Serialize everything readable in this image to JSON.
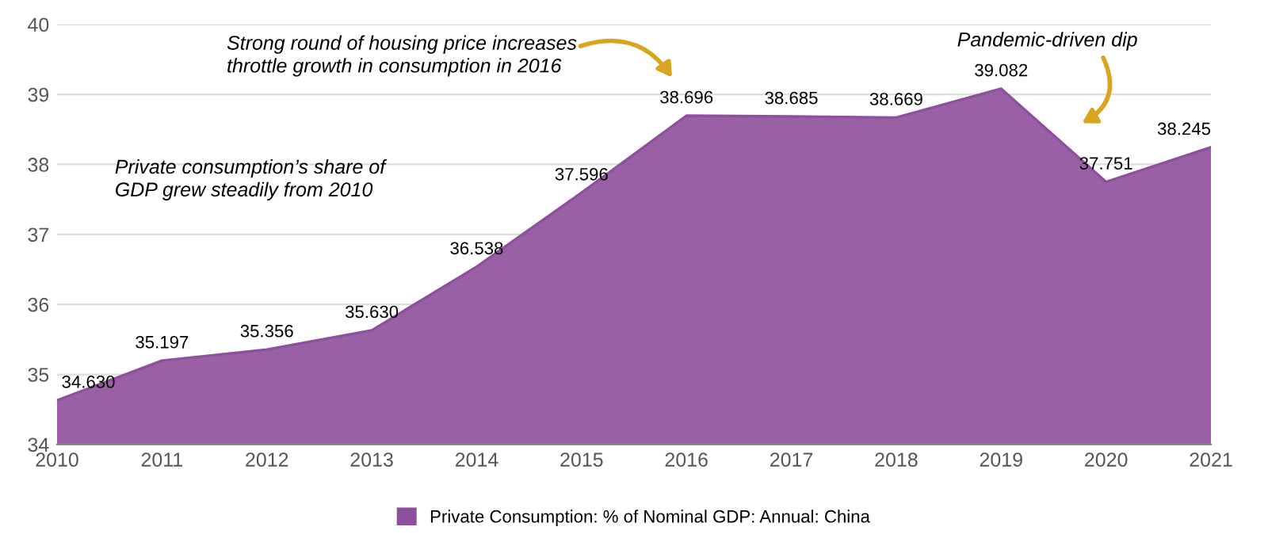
{
  "chart_data": {
    "type": "area",
    "x": [
      2010,
      2011,
      2012,
      2013,
      2014,
      2015,
      2016,
      2017,
      2018,
      2019,
      2020,
      2021
    ],
    "series": [
      {
        "name": "Private Consumption: % of Nominal GDP: Annual: China",
        "color": "#8e4f9c",
        "values": [
          34.63,
          35.197,
          35.356,
          35.63,
          36.538,
          37.596,
          38.696,
          38.685,
          38.669,
          39.082,
          37.751,
          38.245
        ]
      }
    ],
    "value_labels": [
      "34.630",
      "35.197",
      "35.356",
      "35.630",
      "36.538",
      "37.596",
      "38.696",
      "38.685",
      "38.669",
      "39.082",
      "37.751",
      "38.245"
    ],
    "xlim": [
      2010,
      2021
    ],
    "xticks": [
      2010,
      2011,
      2012,
      2013,
      2014,
      2015,
      2016,
      2017,
      2018,
      2019,
      2020,
      2021
    ],
    "ylim": [
      34,
      40
    ],
    "yticks": [
      34,
      35,
      36,
      37,
      38,
      39,
      40
    ],
    "grid": "y",
    "legend": "bottom",
    "annotations": [
      "Strong round of housing price increases\nthrottle growth in consumption in 2016",
      "Pandemic-driven dip",
      "Private consumption’s share of\nGDP grew steadily from 2010"
    ]
  }
}
